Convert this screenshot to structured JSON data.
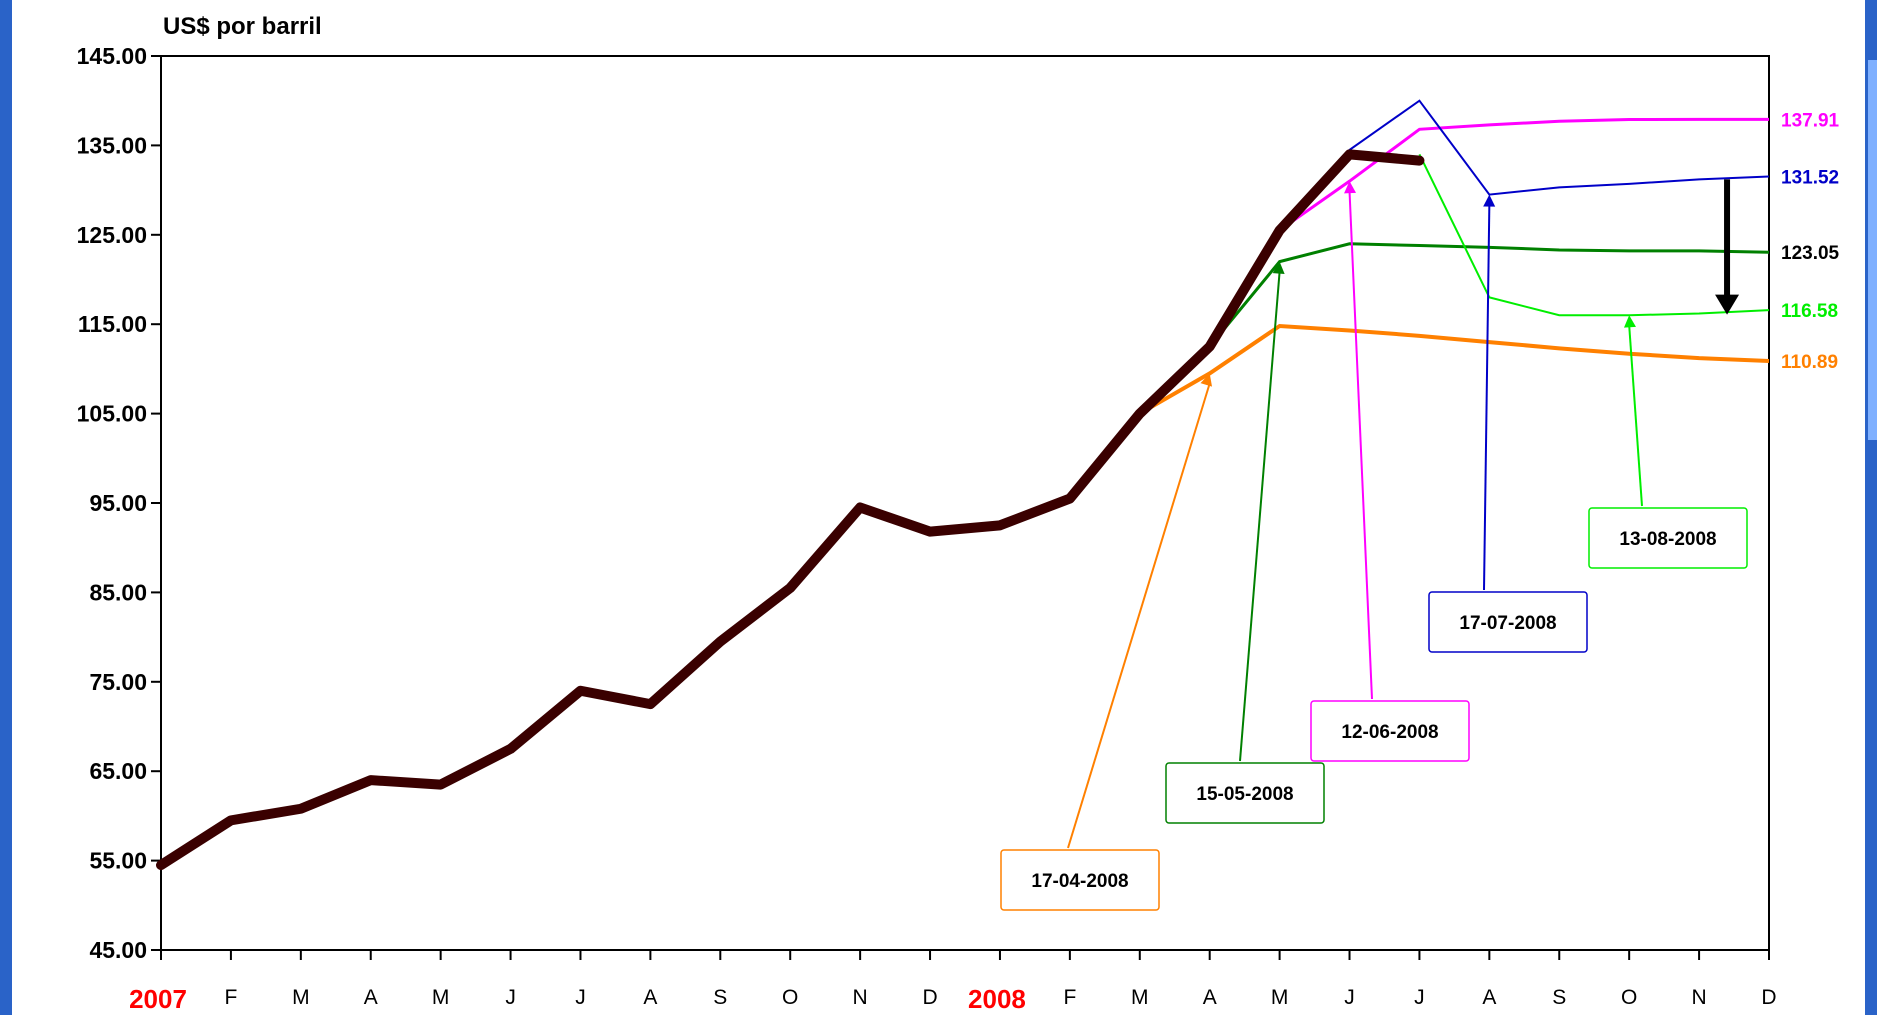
{
  "chart_data": {
    "type": "line",
    "ylabel": "US$ por barril",
    "ylim": [
      45,
      145
    ],
    "yticks": [
      "45.00",
      "55.00",
      "65.00",
      "75.00",
      "85.00",
      "95.00",
      "105.00",
      "115.00",
      "125.00",
      "135.00",
      "145.00"
    ],
    "x_tick_labels": [
      "2007",
      "F",
      "M",
      "A",
      "M",
      "J",
      "J",
      "A",
      "S",
      "O",
      "N",
      "D",
      "2008",
      "F",
      "M",
      "A",
      "M",
      "J",
      "J",
      "A",
      "S",
      "O",
      "N",
      "D"
    ],
    "year_labels": [
      "2007",
      "2008"
    ],
    "colors": {
      "historical": "#3a0000",
      "f_17_04": "#ff8000",
      "f_15_05": "#008000",
      "f_12_06": "#ff00ff",
      "f_17_07": "#0000c8",
      "f_13_08": "#00ee00",
      "frame": "#1f5fbf"
    },
    "historical": {
      "x": [
        0,
        1,
        2,
        3,
        4,
        5,
        6,
        7,
        8,
        9,
        10,
        11,
        12,
        13,
        14,
        15,
        16,
        17,
        18
      ],
      "values": [
        54.5,
        59.5,
        60.8,
        64.0,
        63.5,
        67.5,
        74.0,
        72.5,
        79.5,
        85.5,
        94.5,
        91.8,
        92.5,
        95.5,
        105.0,
        112.5,
        125.5,
        134.0,
        133.3
      ]
    },
    "series": [
      {
        "name": "17-04-2008",
        "x": [
          14,
          15,
          16,
          17,
          18,
          19,
          20,
          21,
          22,
          23
        ],
        "values": [
          105.0,
          109.5,
          114.8,
          114.3,
          113.7,
          113.0,
          112.3,
          111.7,
          111.2,
          110.89
        ]
      },
      {
        "name": "15-05-2008",
        "x": [
          15,
          16,
          17,
          18,
          19,
          20,
          21,
          22,
          23
        ],
        "values": [
          112.5,
          122.0,
          124.0,
          123.8,
          123.6,
          123.3,
          123.2,
          123.2,
          123.05
        ]
      },
      {
        "name": "12-06-2008",
        "x": [
          16,
          17,
          18,
          19,
          20,
          21,
          22,
          23
        ],
        "values": [
          125.5,
          131.0,
          136.8,
          137.3,
          137.7,
          137.9,
          137.91,
          137.91
        ]
      },
      {
        "name": "17-07-2008",
        "x": [
          16,
          17,
          18,
          19,
          20,
          21,
          22,
          23
        ],
        "values": [
          125.5,
          134.5,
          140.0,
          129.5,
          130.3,
          130.7,
          131.2,
          131.52
        ]
      },
      {
        "name": "13-08-2008",
        "x": [
          18,
          19,
          20,
          21,
          22,
          23
        ],
        "values": [
          134.0,
          118.0,
          116.0,
          116.0,
          116.2,
          116.58
        ]
      }
    ],
    "end_labels": [
      "137.91",
      "131.52",
      "123.05",
      "116.58",
      "110.89"
    ],
    "callouts": [
      {
        "text": "17-04-2008",
        "x": 15,
        "y": 109.5
      },
      {
        "text": "15-05-2008",
        "x": 16,
        "y": 122.0
      },
      {
        "text": "12-06-2008",
        "x": 17,
        "y": 131.0
      },
      {
        "text": "17-07-2008",
        "x": 19,
        "y": 129.5
      },
      {
        "text": "13-08-2008",
        "x": 21,
        "y": 116.0
      }
    ],
    "arrow": {
      "x": 22.4,
      "y_from": 131.2,
      "y_to": 116.3
    }
  }
}
